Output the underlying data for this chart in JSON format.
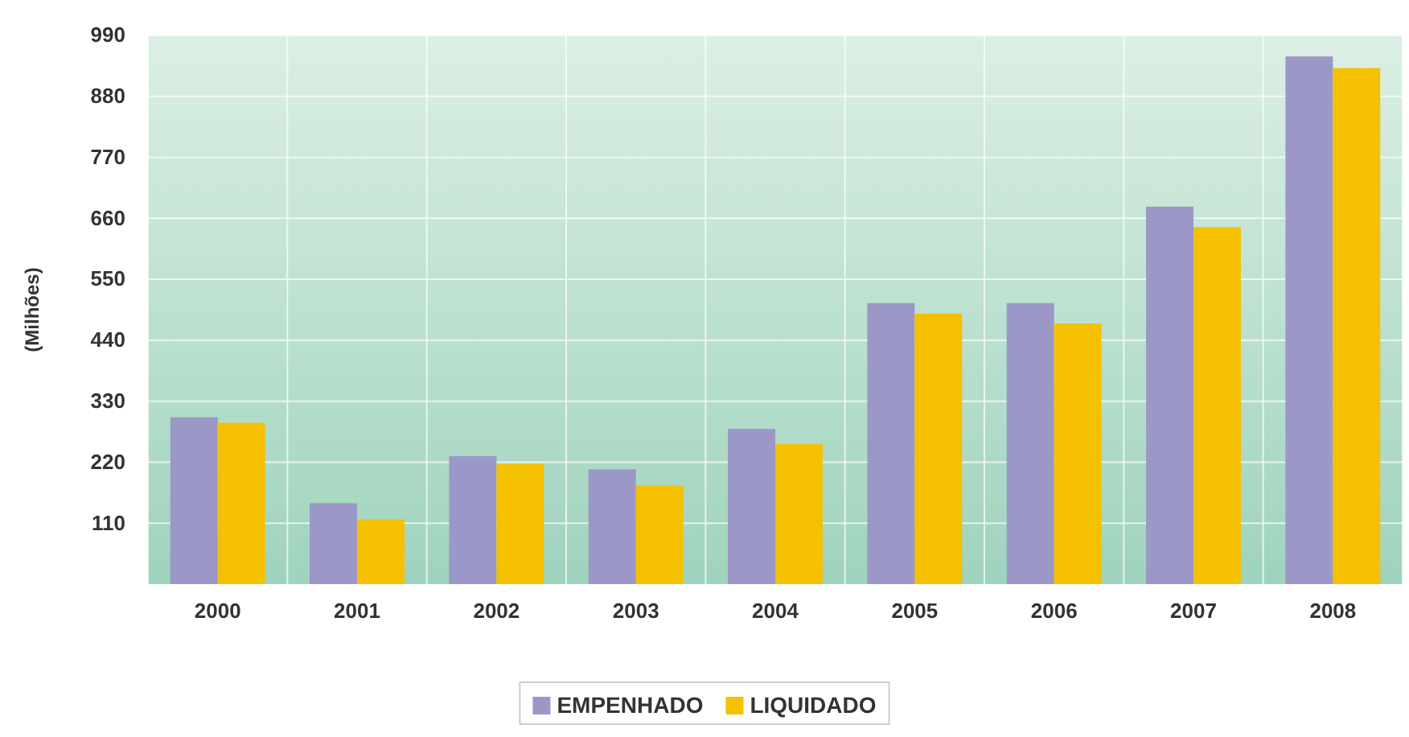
{
  "chart_data": {
    "type": "bar",
    "ylabel": "(Milhões)",
    "categories": [
      "2000",
      "2001",
      "2002",
      "2003",
      "2004",
      "2005",
      "2006",
      "2007",
      "2008"
    ],
    "series": [
      {
        "name": "EMPENHADO",
        "color": "#9b97c6",
        "values": [
          301,
          146,
          231,
          207,
          280,
          507,
          507,
          681,
          952
        ]
      },
      {
        "name": "LIQUIDADO",
        "color": "#f5c000",
        "values": [
          291,
          117,
          217,
          178,
          253,
          488,
          470,
          644,
          931
        ]
      }
    ],
    "ylim": [
      0,
      990
    ],
    "yticks": [
      110,
      220,
      330,
      440,
      550,
      660,
      770,
      880,
      990
    ],
    "grid": true,
    "legend": "bottom"
  }
}
